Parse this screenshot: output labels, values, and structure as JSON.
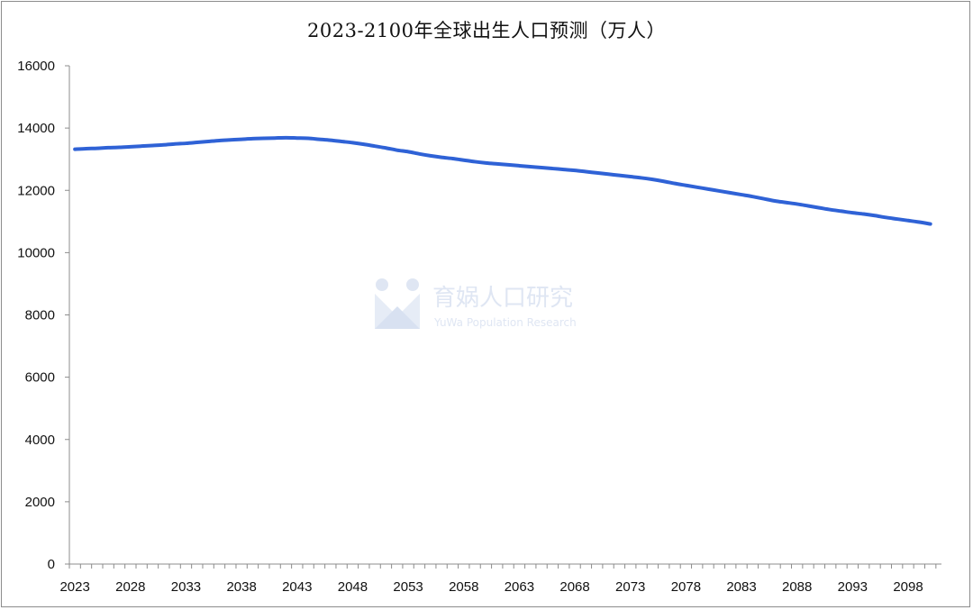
{
  "chart_data": {
    "type": "line",
    "title": "2023-2100年全球出生人口预测（万人）",
    "xlabel": "",
    "ylabel": "",
    "x": [
      2023,
      2024,
      2025,
      2026,
      2027,
      2028,
      2029,
      2030,
      2031,
      2032,
      2033,
      2034,
      2035,
      2036,
      2037,
      2038,
      2039,
      2040,
      2041,
      2042,
      2043,
      2044,
      2045,
      2046,
      2047,
      2048,
      2049,
      2050,
      2051,
      2052,
      2053,
      2054,
      2055,
      2056,
      2057,
      2058,
      2059,
      2060,
      2061,
      2062,
      2063,
      2064,
      2065,
      2066,
      2067,
      2068,
      2069,
      2070,
      2071,
      2072,
      2073,
      2074,
      2075,
      2076,
      2077,
      2078,
      2079,
      2080,
      2081,
      2082,
      2083,
      2084,
      2085,
      2086,
      2087,
      2088,
      2089,
      2090,
      2091,
      2092,
      2093,
      2094,
      2095,
      2096,
      2097,
      2098,
      2099,
      2100
    ],
    "series": [
      {
        "color": "#2f62d6",
        "values": [
          13320,
          13340,
          13350,
          13370,
          13380,
          13400,
          13420,
          13440,
          13460,
          13490,
          13510,
          13540,
          13570,
          13600,
          13620,
          13640,
          13660,
          13670,
          13680,
          13690,
          13680,
          13670,
          13640,
          13610,
          13570,
          13530,
          13480,
          13420,
          13360,
          13290,
          13240,
          13170,
          13110,
          13060,
          13020,
          12970,
          12920,
          12880,
          12850,
          12820,
          12790,
          12760,
          12730,
          12700,
          12670,
          12640,
          12600,
          12560,
          12520,
          12480,
          12440,
          12400,
          12350,
          12290,
          12220,
          12160,
          12100,
          12040,
          11980,
          11920,
          11860,
          11800,
          11730,
          11660,
          11610,
          11560,
          11500,
          11440,
          11380,
          11330,
          11280,
          11240,
          11190,
          11130,
          11080,
          11030,
          10980,
          10920
        ]
      }
    ],
    "xticks": [
      2023,
      2028,
      2033,
      2038,
      2043,
      2048,
      2053,
      2058,
      2063,
      2068,
      2073,
      2078,
      2083,
      2088,
      2093,
      2098
    ],
    "yticks": [
      0,
      2000,
      4000,
      6000,
      8000,
      10000,
      12000,
      14000,
      16000
    ],
    "ylim": [
      0,
      16000
    ],
    "xlim": [
      2022.5,
      2101
    ],
    "grid": false,
    "legend": "none"
  },
  "watermark": {
    "name": "育娲人口研究",
    "subname": "YuWa Population Research",
    "color": "#dfe6f3"
  }
}
